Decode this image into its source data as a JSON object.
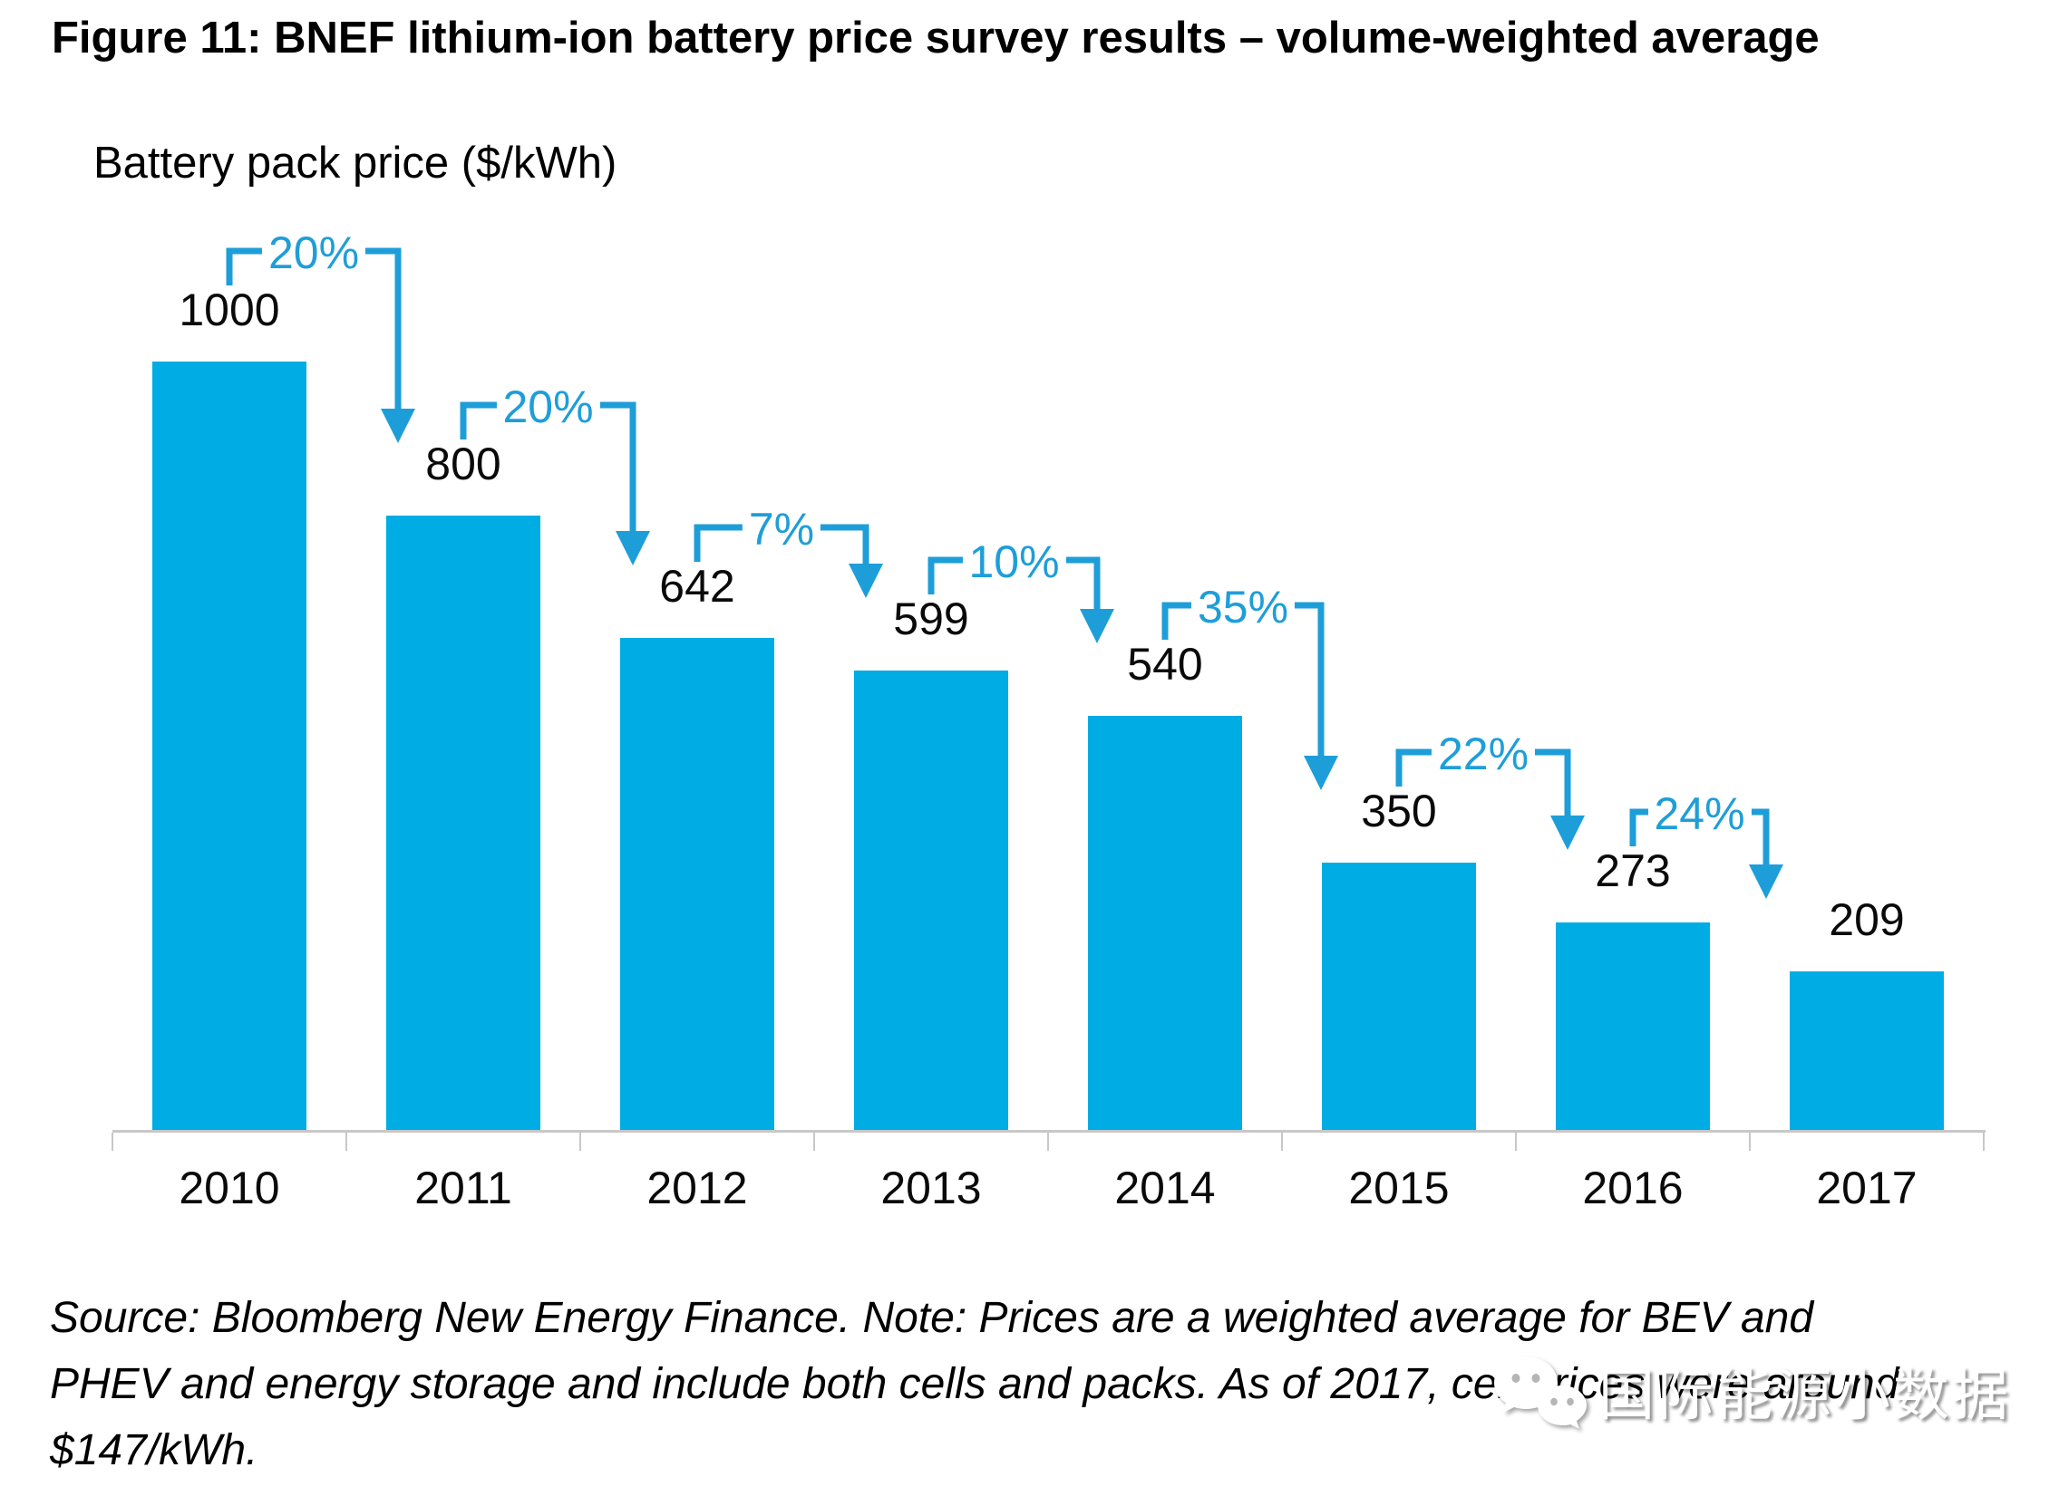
{
  "title": "Figure 11: BNEF lithium-ion battery price survey results – volume-weighted average",
  "chart_data": {
    "type": "bar",
    "title": "Figure 11: BNEF lithium-ion battery price survey results – volume-weighted average",
    "ylabel": "Battery pack price ($/kWh)",
    "xlabel": "",
    "categories": [
      "2010",
      "2011",
      "2012",
      "2013",
      "2014",
      "2015",
      "2016",
      "2017"
    ],
    "values": [
      1000,
      800,
      642,
      599,
      540,
      350,
      273,
      209
    ],
    "pct_change_labels": [
      "20%",
      "20%",
      "7%",
      "10%",
      "35%",
      "22%",
      "24%"
    ],
    "ylim": [
      0,
      1080
    ],
    "grid": false,
    "legend": false,
    "bar_color": "#00ACE4",
    "annotation_color": "#1E9ED9",
    "axis_color": "#C8C8C8"
  },
  "source_note": {
    "lines": [
      "Source: Bloomberg New Energy Finance. Note: Prices are a weighted average for BEV and",
      "PHEV and energy storage and include both cells and packs. As of 2017, cell prices were around",
      "$147/kWh."
    ]
  },
  "watermark": {
    "icon": "wechat-icon",
    "text": "国际能源小数据"
  }
}
